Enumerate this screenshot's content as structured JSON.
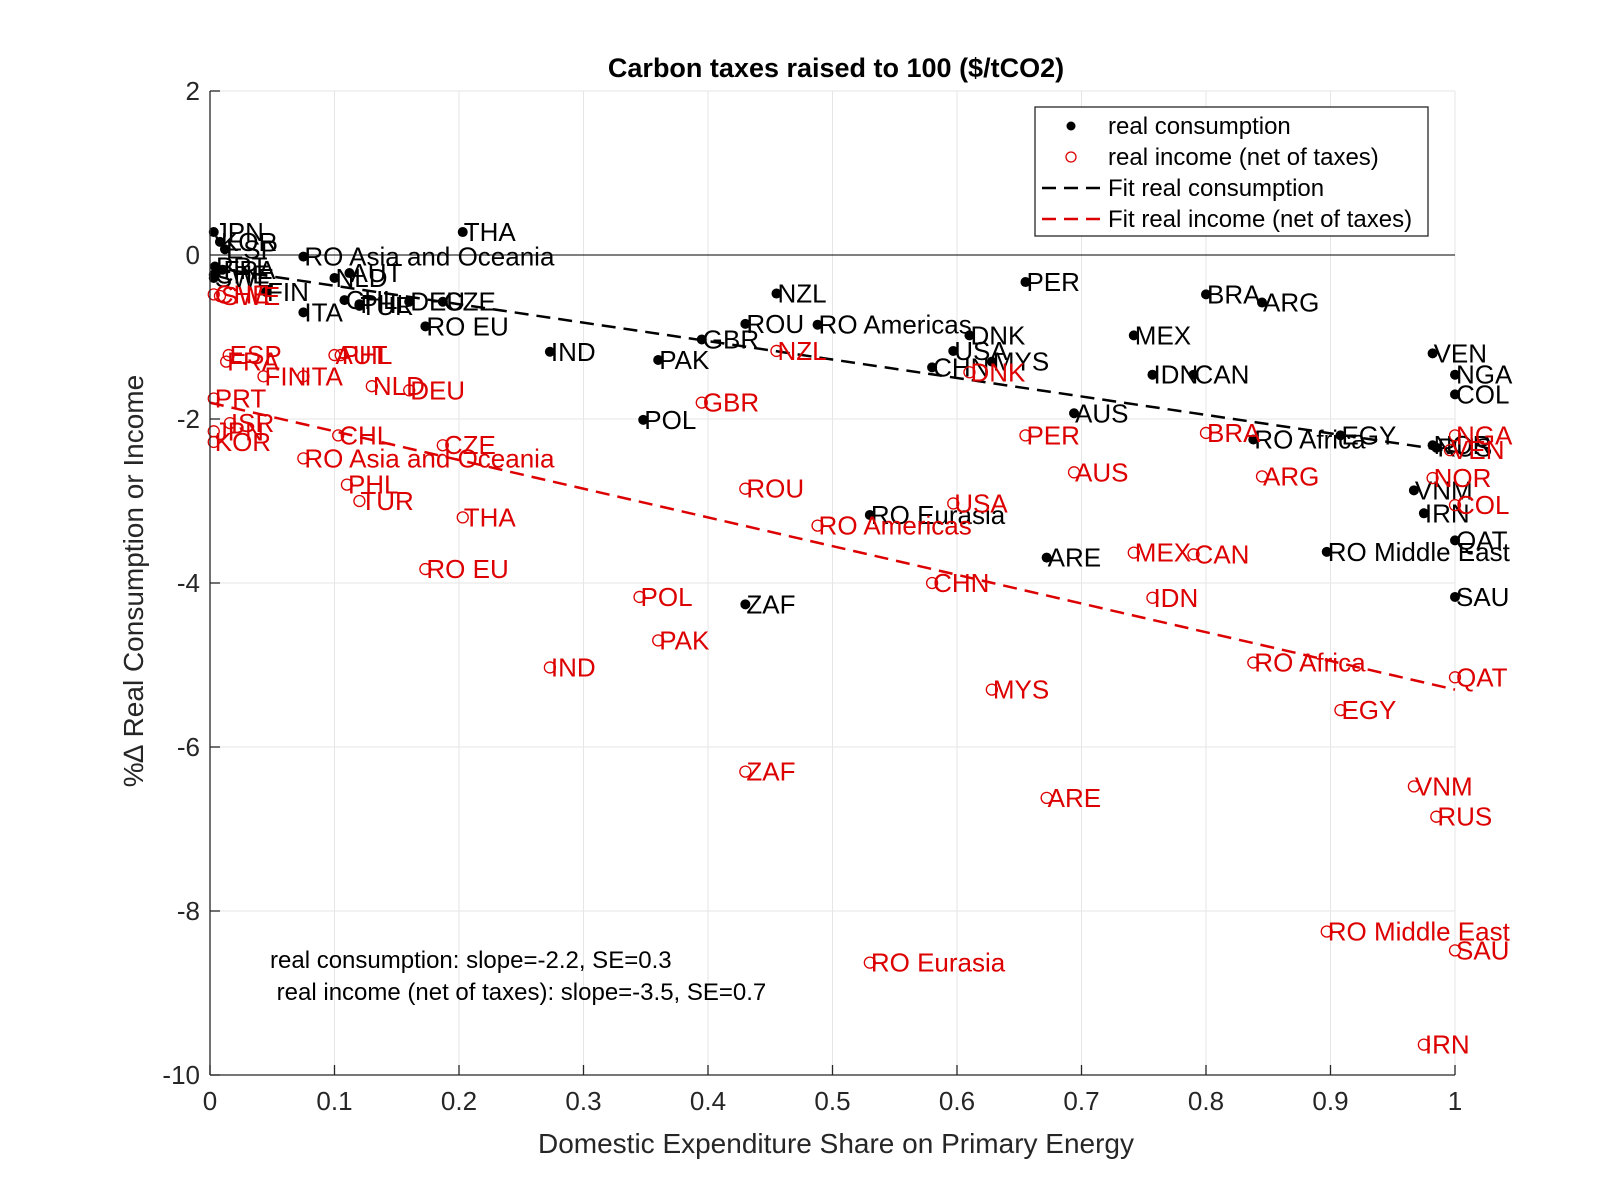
{
  "chart_data": {
    "type": "scatter",
    "title": "Carbon taxes raised to 100 ($/tCO2)",
    "xlabel": "Domestic Expenditure Share on Primary Energy",
    "ylabel": "%∆ Real Consumption or Income",
    "xlim": [
      0,
      1
    ],
    "ylim": [
      -10,
      2
    ],
    "x_ticks": [
      0,
      0.1,
      0.2,
      0.3,
      0.4,
      0.5,
      0.6,
      0.7,
      0.8,
      0.9,
      1
    ],
    "x_tick_labels": [
      "0",
      "0.1",
      "0.2",
      "0.3",
      "0.4",
      "0.5",
      "0.6",
      "0.7",
      "0.8",
      "0.9",
      "1"
    ],
    "y_ticks": [
      -10,
      -8,
      -6,
      -4,
      -2,
      0,
      2
    ],
    "y_tick_labels": [
      "-10",
      "-8",
      "-6",
      "-4",
      "-2",
      "0",
      "2"
    ],
    "grid": true,
    "zero_line": true,
    "legend_position": "top-right",
    "colors": {
      "consumption": "#000000",
      "income": "#dd0000",
      "axis": "#262626",
      "grid": "#e6e6e6"
    },
    "series": [
      {
        "name": "real consumption",
        "marker": "filled-dot",
        "color": "#000000",
        "points": [
          {
            "label": "JPN",
            "x": 0.003,
            "y": 0.28
          },
          {
            "label": "KOR",
            "x": 0.008,
            "y": 0.16
          },
          {
            "label": "ESP",
            "x": 0.012,
            "y": 0.07
          },
          {
            "label": "PRT",
            "x": 0.004,
            "y": -0.14
          },
          {
            "label": "CHE",
            "x": 0.003,
            "y": -0.24
          },
          {
            "label": "SWE",
            "x": 0.003,
            "y": -0.28
          },
          {
            "label": "FRA",
            "x": 0.01,
            "y": -0.18
          },
          {
            "label": "FIN",
            "x": 0.045,
            "y": -0.45
          },
          {
            "label": "ITA",
            "x": 0.075,
            "y": -0.7
          },
          {
            "label": "RO Asia and Oceania",
            "x": 0.075,
            "y": -0.02
          },
          {
            "label": "AUT",
            "x": 0.112,
            "y": -0.22
          },
          {
            "label": "NLD",
            "x": 0.1,
            "y": -0.28
          },
          {
            "label": "CHL",
            "x": 0.108,
            "y": -0.55
          },
          {
            "label": "PHL",
            "x": 0.12,
            "y": -0.6
          },
          {
            "label": "TUR",
            "x": 0.12,
            "y": -0.62
          },
          {
            "label": "DEU",
            "x": 0.16,
            "y": -0.57
          },
          {
            "label": "CZE",
            "x": 0.187,
            "y": -0.57
          },
          {
            "label": "RO EU",
            "x": 0.173,
            "y": -0.87
          },
          {
            "label": "THA",
            "x": 0.203,
            "y": 0.28
          },
          {
            "label": "IND",
            "x": 0.273,
            "y": -1.18
          },
          {
            "label": "POL",
            "x": 0.348,
            "y": -2.01
          },
          {
            "label": "PAK",
            "x": 0.36,
            "y": -1.28
          },
          {
            "label": "GBR",
            "x": 0.395,
            "y": -1.03
          },
          {
            "label": "ROU",
            "x": 0.43,
            "y": -0.84
          },
          {
            "label": "ZAF",
            "x": 0.43,
            "y": -4.26
          },
          {
            "label": "NZL",
            "x": 0.455,
            "y": -0.47
          },
          {
            "label": "RO Americas",
            "x": 0.488,
            "y": -0.85
          },
          {
            "label": "RO Eurasia",
            "x": 0.53,
            "y": -3.17
          },
          {
            "label": "CHN",
            "x": 0.58,
            "y": -1.37
          },
          {
            "label": "USA",
            "x": 0.597,
            "y": -1.17
          },
          {
            "label": "DNK",
            "x": 0.61,
            "y": -0.98
          },
          {
            "label": "MYS",
            "x": 0.628,
            "y": -1.3
          },
          {
            "label": "PER",
            "x": 0.655,
            "y": -0.33
          },
          {
            "label": "ARE",
            "x": 0.672,
            "y": -3.69
          },
          {
            "label": "AUS",
            "x": 0.694,
            "y": -1.93
          },
          {
            "label": "MEX",
            "x": 0.742,
            "y": -0.98
          },
          {
            "label": "IDN",
            "x": 0.757,
            "y": -1.46
          },
          {
            "label": "CAN",
            "x": 0.79,
            "y": -1.46
          },
          {
            "label": "BRA",
            "x": 0.8,
            "y": -0.48
          },
          {
            "label": "ARG",
            "x": 0.845,
            "y": -0.58
          },
          {
            "label": "RO Africa",
            "x": 0.838,
            "y": -2.25
          },
          {
            "label": "EGY",
            "x": 0.908,
            "y": -2.2
          },
          {
            "label": "RO Middle East",
            "x": 0.897,
            "y": -3.62
          },
          {
            "label": "VEN",
            "x": 0.982,
            "y": -1.2
          },
          {
            "label": "VNM",
            "x": 0.967,
            "y": -2.87
          },
          {
            "label": "IRN",
            "x": 0.975,
            "y": -3.15
          },
          {
            "label": "NOR",
            "x": 0.982,
            "y": -2.32
          },
          {
            "label": "RUS",
            "x": 0.985,
            "y": -2.35
          },
          {
            "label": "NGA",
            "x": 1.0,
            "y": -1.46
          },
          {
            "label": "COL",
            "x": 1.0,
            "y": -1.7
          },
          {
            "label": "QAT",
            "x": 1.0,
            "y": -3.48
          },
          {
            "label": "SAU",
            "x": 1.0,
            "y": -4.17
          }
        ]
      },
      {
        "name": "real income (net of taxes)",
        "marker": "hollow-circle",
        "color": "#dd0000",
        "points": [
          {
            "label": "CHE",
            "x": 0.003,
            "y": -0.48
          },
          {
            "label": "SWE",
            "x": 0.008,
            "y": -0.5
          },
          {
            "label": "ESP",
            "x": 0.015,
            "y": -1.22
          },
          {
            "label": "FRA",
            "x": 0.013,
            "y": -1.3
          },
          {
            "label": "FIN",
            "x": 0.043,
            "y": -1.48
          },
          {
            "label": "ITA",
            "x": 0.075,
            "y": -1.48
          },
          {
            "label": "AUT",
            "x": 0.1,
            "y": -1.22
          },
          {
            "label": "PHL",
            "x": 0.105,
            "y": -1.22
          },
          {
            "label": "NLD",
            "x": 0.13,
            "y": -1.6
          },
          {
            "label": "DEU",
            "x": 0.16,
            "y": -1.65
          },
          {
            "label": "PRT",
            "x": 0.003,
            "y": -1.75
          },
          {
            "label": "ISR",
            "x": 0.016,
            "y": -2.05
          },
          {
            "label": "JPN",
            "x": 0.003,
            "y": -2.15
          },
          {
            "label": "KOR",
            "x": 0.003,
            "y": -2.28
          },
          {
            "label": "CHL",
            "x": 0.103,
            "y": -2.2
          },
          {
            "label": "CZE",
            "x": 0.187,
            "y": -2.32
          },
          {
            "label": "RO Asia and Oceania",
            "x": 0.075,
            "y": -2.48
          },
          {
            "label": "PHL",
            "x": 0.11,
            "y": -2.8
          },
          {
            "label": "TUR",
            "x": 0.12,
            "y": -3.0
          },
          {
            "label": "THA",
            "x": 0.203,
            "y": -3.2
          },
          {
            "label": "RO EU",
            "x": 0.173,
            "y": -3.83
          },
          {
            "label": "IND",
            "x": 0.273,
            "y": -5.03
          },
          {
            "label": "POL",
            "x": 0.345,
            "y": -4.17
          },
          {
            "label": "PAK",
            "x": 0.36,
            "y": -4.7
          },
          {
            "label": "GBR",
            "x": 0.395,
            "y": -1.8
          },
          {
            "label": "ROU",
            "x": 0.43,
            "y": -2.85
          },
          {
            "label": "ZAF",
            "x": 0.43,
            "y": -6.3
          },
          {
            "label": "NZL",
            "x": 0.455,
            "y": -1.17
          },
          {
            "label": "RO Americas",
            "x": 0.488,
            "y": -3.3
          },
          {
            "label": "RO Eurasia",
            "x": 0.53,
            "y": -8.63
          },
          {
            "label": "CHN",
            "x": 0.58,
            "y": -4.0
          },
          {
            "label": "USA",
            "x": 0.597,
            "y": -3.03
          },
          {
            "label": "DNK",
            "x": 0.61,
            "y": -1.43
          },
          {
            "label": "MYS",
            "x": 0.628,
            "y": -5.3
          },
          {
            "label": "PER",
            "x": 0.655,
            "y": -2.2
          },
          {
            "label": "ARE",
            "x": 0.672,
            "y": -6.62
          },
          {
            "label": "AUS",
            "x": 0.694,
            "y": -2.65
          },
          {
            "label": "MEX",
            "x": 0.742,
            "y": -3.63
          },
          {
            "label": "IDN",
            "x": 0.757,
            "y": -4.18
          },
          {
            "label": "CAN",
            "x": 0.79,
            "y": -3.65
          },
          {
            "label": "BRA",
            "x": 0.8,
            "y": -2.17
          },
          {
            "label": "ARG",
            "x": 0.845,
            "y": -2.7
          },
          {
            "label": "RO Africa",
            "x": 0.838,
            "y": -4.97
          },
          {
            "label": "EGY",
            "x": 0.908,
            "y": -5.55
          },
          {
            "label": "RO Middle East",
            "x": 0.897,
            "y": -8.25
          },
          {
            "label": "VNM",
            "x": 0.967,
            "y": -6.48
          },
          {
            "label": "IRN",
            "x": 0.975,
            "y": -9.63
          },
          {
            "label": "RUS",
            "x": 0.985,
            "y": -6.85
          },
          {
            "label": "NOR",
            "x": 0.982,
            "y": -2.72
          },
          {
            "label": "NGA",
            "x": 1.0,
            "y": -2.2
          },
          {
            "label": "VEN",
            "x": 0.996,
            "y": -2.38
          },
          {
            "label": "COL",
            "x": 1.0,
            "y": -3.05
          },
          {
            "label": "QAT",
            "x": 1.0,
            "y": -5.15
          },
          {
            "label": "SAU",
            "x": 1.0,
            "y": -8.48
          }
        ]
      }
    ],
    "fits": [
      {
        "name": "Fit real consumption",
        "color": "#000000",
        "x": [
          0.0,
          1.0
        ],
        "y": [
          -0.15,
          -2.4
        ]
      },
      {
        "name": "Fit real income (net of taxes)",
        "color": "#dd0000",
        "x": [
          0.0,
          1.0
        ],
        "y": [
          -1.8,
          -5.3
        ]
      }
    ],
    "annotations": [
      "real consumption: slope=-2.2, SE=0.3",
      " real income (net of taxes): slope=-3.5, SE=0.7"
    ],
    "legend": [
      "real consumption",
      "real income (net of taxes)",
      "Fit real consumption",
      "Fit real income (net of taxes)"
    ]
  }
}
